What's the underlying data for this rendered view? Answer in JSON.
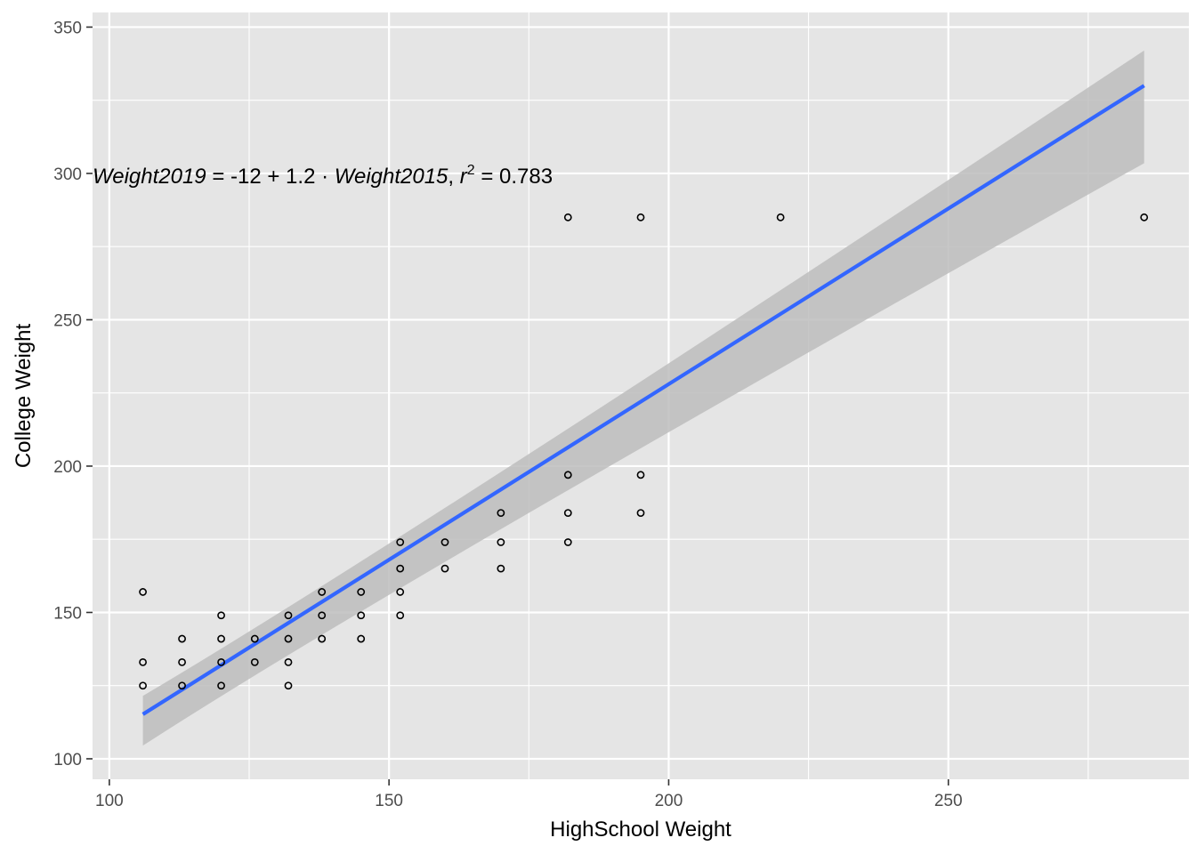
{
  "chart_data": {
    "type": "scatter",
    "xlabel": "HighSchool Weight",
    "ylabel": "College Weight",
    "xlim": [
      97,
      293
    ],
    "ylim": [
      93,
      355
    ],
    "x_ticks": [
      100,
      150,
      200,
      250
    ],
    "y_ticks": [
      100,
      150,
      200,
      250,
      300,
      350
    ],
    "grid": true,
    "annotation": {
      "lhs": "Weight2019",
      "equals": " = -12 + 1.2 · ",
      "rhs": "Weight2015",
      "sep": ",  ",
      "r_label": "r",
      "r_exp": "2",
      "r_value": " = 0.783",
      "x": 97,
      "y": 299
    },
    "fit": {
      "intercept": -12,
      "slope": 1.2,
      "x_range": [
        106,
        285
      ]
    },
    "confidence_band": [
      {
        "x": 106,
        "lower": 104.5,
        "upper": 121.5
      },
      {
        "x": 150,
        "lower": 160,
        "upper": 170
      },
      {
        "x": 285,
        "lower": 303.5,
        "upper": 342
      }
    ],
    "points": [
      {
        "x": 106,
        "y": 157
      },
      {
        "x": 106,
        "y": 133
      },
      {
        "x": 106,
        "y": 125
      },
      {
        "x": 113,
        "y": 141
      },
      {
        "x": 113,
        "y": 133
      },
      {
        "x": 113,
        "y": 125
      },
      {
        "x": 120,
        "y": 149
      },
      {
        "x": 120,
        "y": 141
      },
      {
        "x": 120,
        "y": 133
      },
      {
        "x": 120,
        "y": 125
      },
      {
        "x": 126,
        "y": 141
      },
      {
        "x": 126,
        "y": 133
      },
      {
        "x": 132,
        "y": 149
      },
      {
        "x": 132,
        "y": 141
      },
      {
        "x": 132,
        "y": 133
      },
      {
        "x": 132,
        "y": 125
      },
      {
        "x": 138,
        "y": 157
      },
      {
        "x": 138,
        "y": 149
      },
      {
        "x": 138,
        "y": 141
      },
      {
        "x": 145,
        "y": 157
      },
      {
        "x": 145,
        "y": 149
      },
      {
        "x": 145,
        "y": 141
      },
      {
        "x": 152,
        "y": 174
      },
      {
        "x": 152,
        "y": 165
      },
      {
        "x": 152,
        "y": 157
      },
      {
        "x": 152,
        "y": 149
      },
      {
        "x": 160,
        "y": 174
      },
      {
        "x": 160,
        "y": 165
      },
      {
        "x": 170,
        "y": 184
      },
      {
        "x": 170,
        "y": 174
      },
      {
        "x": 170,
        "y": 165
      },
      {
        "x": 182,
        "y": 285
      },
      {
        "x": 182,
        "y": 197
      },
      {
        "x": 182,
        "y": 184
      },
      {
        "x": 182,
        "y": 174
      },
      {
        "x": 195,
        "y": 285
      },
      {
        "x": 195,
        "y": 197
      },
      {
        "x": 195,
        "y": 184
      },
      {
        "x": 220,
        "y": 285
      },
      {
        "x": 285,
        "y": 285
      }
    ],
    "colors": {
      "panel": "#e5e5e5",
      "grid": "#ffffff",
      "line": "#3366ff",
      "band": "#bdbdbd",
      "point": "#000000"
    }
  }
}
